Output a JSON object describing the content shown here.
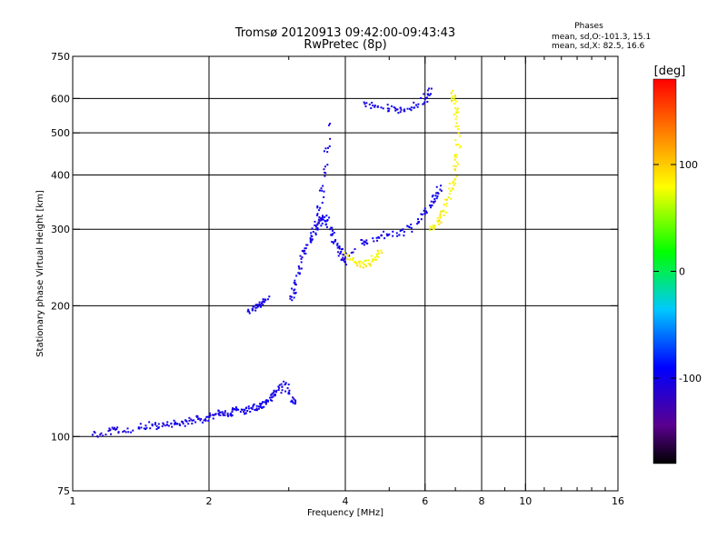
{
  "chart_data": {
    "type": "scatter",
    "title": "Tromsø 20120913 09:42:00-09:43:43",
    "subtitle": "RwPretec (8p)",
    "xlabel": "Frequency [MHz]",
    "ylabel": "Stationary phase Virtual Height [km]",
    "x_scale": "log",
    "y_scale": "log",
    "xlim": [
      1,
      16
    ],
    "ylim": [
      75,
      750
    ],
    "x_ticks": [
      1,
      2,
      4,
      6,
      8,
      10,
      16
    ],
    "x_tick_labels": [
      "1",
      "2",
      "4",
      "6",
      "8",
      "10",
      "16"
    ],
    "x_minor_ticks": [
      3,
      5,
      7,
      9,
      11,
      12,
      13,
      14,
      15
    ],
    "y_ticks": [
      75,
      100,
      200,
      300,
      400,
      500,
      600,
      750
    ],
    "y_tick_labels": [
      "75",
      "100",
      "200",
      "300",
      "400",
      "500",
      "600",
      "750"
    ],
    "grid_x": [
      2,
      4,
      6,
      8,
      10
    ],
    "grid_y": [
      100,
      200,
      300,
      400,
      500,
      600
    ],
    "legend": {
      "title": "Phases",
      "line1": "mean, sd,O:-101.3, 15.1",
      "line2": "mean, sd,X:  82.5, 16.6"
    },
    "colorbar": {
      "label": "[deg]",
      "range": [
        -180,
        180
      ],
      "ticks": [
        100,
        0,
        -100
      ],
      "tick_labels": [
        "100",
        "0",
        "-100"
      ]
    },
    "series": [
      {
        "name": "O-mode echoes",
        "phase_deg": -101.3,
        "segments": [
          {
            "x": [
              1.12,
              1.15,
              1.2,
              1.25,
              1.3,
              1.4,
              1.45,
              1.5,
              1.55,
              1.6,
              1.65,
              1.7,
              1.75,
              1.8,
              1.85,
              1.9,
              1.95,
              2.0,
              2.05,
              2.1,
              2.15,
              2.2,
              2.25,
              2.3,
              2.35,
              2.4,
              2.45,
              2.5,
              2.55,
              2.6,
              2.65,
              2.7,
              2.75,
              2.8,
              2.85,
              2.9,
              2.95,
              3.0,
              3.05,
              3.1
            ],
            "y": [
              102,
              101,
              103,
              104,
              103,
              105,
              106,
              106,
              105,
              106,
              107,
              107,
              108,
              107,
              109,
              110,
              109,
              111,
              112,
              113,
              112,
              113,
              114,
              115,
              114,
              115,
              116,
              117,
              116,
              118,
              120,
              121,
              123,
              125,
              128,
              130,
              132,
              126,
              121,
              119
            ]
          },
          {
            "x": [
              2.45,
              2.5,
              2.55,
              2.6,
              2.65,
              2.7
            ],
            "y": [
              194,
              196,
              198,
              201,
              204,
              207
            ]
          },
          {
            "x": [
              3.05,
              3.08,
              3.1,
              3.15,
              3.2,
              3.25,
              3.3,
              3.35,
              3.4,
              3.45,
              3.5,
              3.55,
              3.6,
              3.65,
              3.7,
              3.75,
              3.8,
              3.85,
              3.9,
              3.95,
              4.0
            ],
            "y": [
              206,
              214,
              224,
              238,
              252,
              264,
              276,
              286,
              296,
              304,
              310,
              316,
              320,
              314,
              300,
              292,
              282,
              272,
              264,
              258,
              252
            ]
          },
          {
            "x": [
              3.45,
              3.5,
              3.55,
              3.6,
              3.65,
              3.7
            ],
            "y": [
              300,
              332,
              368,
              405,
              452,
              525
            ]
          },
          {
            "x": [
              4.0,
              4.2,
              4.4,
              4.6,
              4.8,
              5.0,
              5.2,
              5.4,
              5.6,
              5.8,
              6.0,
              6.2,
              6.3,
              6.4,
              6.5
            ],
            "y": [
              258,
              270,
              280,
              286,
              290,
              292,
              294,
              296,
              302,
              312,
              325,
              340,
              352,
              364,
              378
            ]
          },
          {
            "x": [
              4.4,
              4.6,
              4.8,
              5.0,
              5.2,
              5.4,
              5.6,
              5.8,
              6.0,
              6.1,
              6.2
            ],
            "y": [
              588,
              578,
              572,
              568,
              566,
              566,
              572,
              582,
              598,
              614,
              632
            ]
          }
        ]
      },
      {
        "name": "X-mode echoes",
        "phase_deg": 82.5,
        "segments": [
          {
            "x": [
              4.0,
              4.1,
              4.2,
              4.3,
              4.4,
              4.5,
              4.6,
              4.7,
              4.8
            ],
            "y": [
              262,
              256,
              252,
              250,
              249,
              250,
              254,
              260,
              268
            ]
          },
          {
            "x": [
              6.2,
              6.3,
              6.4,
              6.5,
              6.6,
              6.7,
              6.8,
              6.9,
              7.0,
              7.05,
              7.1,
              7.1,
              7.05,
              7.0,
              6.95,
              6.9
            ],
            "y": [
              302,
              306,
              312,
              320,
              330,
              344,
              362,
              384,
              410,
              440,
              470,
              510,
              545,
              570,
              600,
              625
            ]
          }
        ]
      }
    ]
  }
}
